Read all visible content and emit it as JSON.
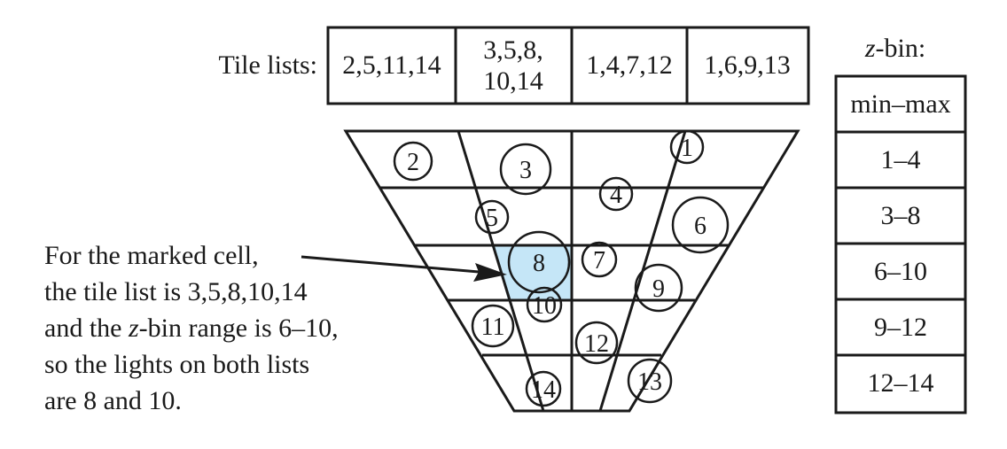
{
  "tile_lists": {
    "label": "Tile lists:",
    "cells": [
      {
        "lines": [
          "2,5,11,14"
        ]
      },
      {
        "lines": [
          "3,5,8,",
          "10,14"
        ]
      },
      {
        "lines": [
          "1,4,7,12"
        ]
      },
      {
        "lines": [
          "1,6,9,13"
        ]
      }
    ]
  },
  "zbin": {
    "label_italic": "z",
    "label_rest": "-bin:",
    "header": "min–max",
    "ranges": [
      "1–4",
      "3–8",
      "6–10",
      "9–12",
      "12–14"
    ]
  },
  "lights": [
    "1",
    "2",
    "3",
    "4",
    "5",
    "6",
    "7",
    "8",
    "9",
    "10",
    "11",
    "12",
    "13",
    "14"
  ],
  "highlight_color": "#c5e6f7",
  "annotation": {
    "line1": "For the marked cell,",
    "line2": "the tile list is 3,5,8,10,14",
    "line3_before": "and the ",
    "line3_italic": "z",
    "line3_after": "-bin range is 6–10,",
    "line4": "so the lights on both lists",
    "line5": "are 8 and 10."
  }
}
